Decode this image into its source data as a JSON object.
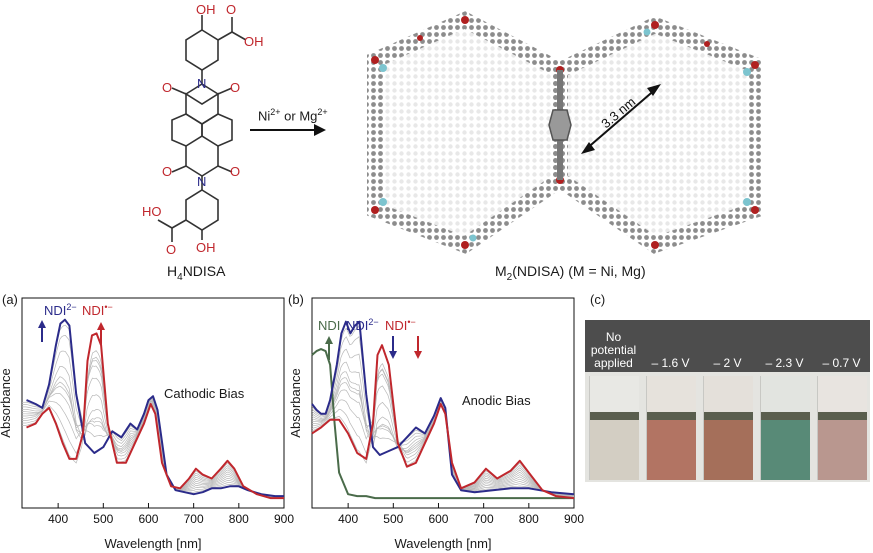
{
  "top": {
    "ligand_label": "H4NDISA",
    "ligand_label_main": "H",
    "ligand_label_sub": "4",
    "ligand_label_rest": "NDISA",
    "arrow_label_a": "Ni",
    "arrow_label_a_sup": "2+",
    "arrow_label_mid": " or Mg",
    "arrow_label_b_sup": "2+",
    "pore_size": "3.3 nm",
    "framework_label_a": "M",
    "framework_label_sub": "2",
    "framework_label_b": "(NDISA) (M = Ni, Mg)",
    "atoms": {
      "OH": "OH",
      "HO": "HO",
      "O": "O",
      "N": "N"
    }
  },
  "panels": {
    "a": {
      "label": "(a)",
      "title": "Cathodic Bias",
      "ylabel": "Absorbance",
      "xlabel": "Wavelength [nm]",
      "ann_dianion": "NDI",
      "ann_dianion_sup": "2−",
      "ann_radical": "NDI",
      "ann_radical_sup": "•−"
    },
    "b": {
      "label": "(b)",
      "title": "Anodic Bias",
      "ylabel": "Absorbance",
      "xlabel": "Wavelength [nm]",
      "ann_neutral": "NDI",
      "ann_dianion": "NDI",
      "ann_dianion_sup": "2−",
      "ann_radical": "NDI",
      "ann_radical_sup": "•−"
    },
    "c": {
      "label": "(c)",
      "photo_labels": [
        "No\npotential\napplied",
        "– 1.6 V",
        "– 2 V",
        "– 2.3 V",
        "– 0.7 V"
      ]
    }
  },
  "colors": {
    "neutral": "#4a6b4a",
    "dianion": "#2b2b8a",
    "radical": "#c0272d",
    "grey": "#b8b8b8"
  },
  "chart_data": [
    {
      "type": "line",
      "title": "Cathodic Bias",
      "xlabel": "Wavelength [nm]",
      "ylabel": "Absorbance",
      "xlim": [
        320,
        900
      ],
      "xticks": [
        400,
        500,
        600,
        700,
        800,
        900
      ],
      "series": [
        {
          "name": "NDI2−",
          "x": [
            330,
            350,
            365,
            380,
            395,
            405,
            415,
            425,
            440,
            460,
            480,
            500,
            520,
            540,
            560,
            575,
            590,
            600,
            610,
            620,
            640,
            660,
            680,
            700,
            720,
            740,
            760,
            780,
            800,
            820,
            850,
            880,
            900
          ],
          "y": [
            0.52,
            0.5,
            0.48,
            0.6,
            0.8,
            0.91,
            0.93,
            0.9,
            0.55,
            0.3,
            0.25,
            0.28,
            0.36,
            0.33,
            0.4,
            0.37,
            0.45,
            0.52,
            0.54,
            0.47,
            0.14,
            0.06,
            0.05,
            0.04,
            0.05,
            0.07,
            0.07,
            0.08,
            0.08,
            0.06,
            0.04,
            0.03,
            0.03
          ]
        },
        {
          "name": "NDI•−",
          "x": [
            330,
            350,
            365,
            380,
            395,
            410,
            425,
            440,
            455,
            465,
            475,
            485,
            495,
            510,
            530,
            550,
            570,
            590,
            605,
            615,
            630,
            650,
            670,
            690,
            705,
            720,
            740,
            760,
            775,
            790,
            810,
            840,
            870,
            900
          ],
          "y": [
            0.38,
            0.4,
            0.45,
            0.48,
            0.4,
            0.3,
            0.22,
            0.22,
            0.35,
            0.72,
            0.85,
            0.86,
            0.8,
            0.4,
            0.2,
            0.2,
            0.3,
            0.4,
            0.5,
            0.45,
            0.2,
            0.08,
            0.07,
            0.12,
            0.17,
            0.14,
            0.12,
            0.17,
            0.21,
            0.17,
            0.08,
            0.04,
            0.02,
            0.02
          ]
        }
      ]
    },
    {
      "type": "line",
      "title": "Anodic Bias",
      "xlabel": "Wavelength [nm]",
      "ylabel": "Absorbance",
      "xlim": [
        320,
        900
      ],
      "xticks": [
        400,
        500,
        600,
        700,
        800,
        900
      ],
      "series": [
        {
          "name": "NDI",
          "x": [
            320,
            330,
            340,
            350,
            360,
            370,
            380,
            400,
            420,
            440,
            460,
            480,
            500,
            600,
            700,
            800,
            900
          ],
          "y": [
            0.75,
            0.77,
            0.78,
            0.77,
            0.7,
            0.4,
            0.15,
            0.04,
            0.03,
            0.03,
            0.02,
            0.02,
            0.02,
            0.02,
            0.02,
            0.02,
            0.02
          ]
        },
        {
          "name": "NDI2−",
          "x": [
            320,
            330,
            340,
            350,
            360,
            375,
            385,
            395,
            405,
            415,
            425,
            440,
            455,
            470,
            490,
            510,
            530,
            550,
            570,
            590,
            605,
            615,
            630,
            650,
            680,
            720,
            760,
            800,
            850,
            900
          ],
          "y": [
            0.5,
            0.47,
            0.45,
            0.45,
            0.52,
            0.7,
            0.86,
            0.92,
            0.86,
            0.9,
            0.92,
            0.55,
            0.28,
            0.24,
            0.26,
            0.28,
            0.33,
            0.38,
            0.35,
            0.44,
            0.53,
            0.48,
            0.14,
            0.06,
            0.05,
            0.06,
            0.07,
            0.07,
            0.05,
            0.04
          ]
        },
        {
          "name": "NDI•−",
          "x": [
            320,
            340,
            360,
            380,
            400,
            420,
            440,
            455,
            465,
            475,
            490,
            510,
            530,
            550,
            570,
            590,
            605,
            615,
            630,
            650,
            680,
            705,
            730,
            760,
            780,
            800,
            830,
            860,
            900
          ],
          "y": [
            0.35,
            0.38,
            0.42,
            0.42,
            0.35,
            0.25,
            0.22,
            0.4,
            0.75,
            0.8,
            0.7,
            0.3,
            0.18,
            0.2,
            0.3,
            0.4,
            0.5,
            0.45,
            0.2,
            0.07,
            0.1,
            0.17,
            0.12,
            0.16,
            0.21,
            0.15,
            0.06,
            0.03,
            0.02
          ]
        }
      ]
    }
  ]
}
